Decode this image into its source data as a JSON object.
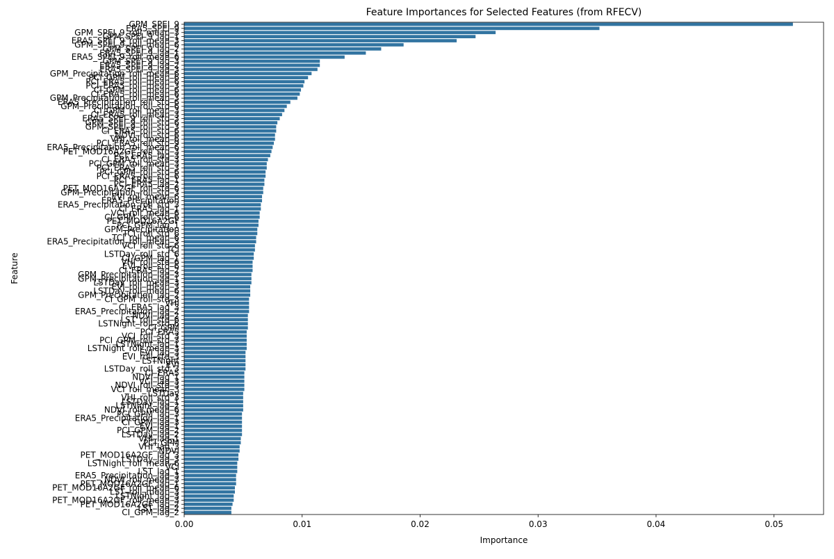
{
  "chart_data": {
    "type": "barh",
    "title": "Feature Importances for Selected Features (from RFECV)",
    "x_label": "Importance",
    "y_label": "Feature",
    "color": "#3274a1",
    "categories": [
      "GPM_SPEI_9",
      "ERA5_SPEI_9",
      "GPM_SPEI_9_roll_mean_3",
      "GPM_SPEI_9_lag_1",
      "ERA5_SPEI_9_roll_mean_3",
      "GPM_SPEI_9_roll_mean_6",
      "GPM_SPEI_9_lag_2",
      "ERA5_SPEI_9_lag_1",
      "ERA5_SPEI_9_roll_mean_6",
      "GPM_SPEI_9_lag_3",
      "ERA5_SPEI_9_lag_2",
      "ERA5_SPEI_9_lag_3",
      "GPM_Precipitation_roll_mean_6",
      "PCI_GPM_roll_mean_6",
      "PCI_ERA5_roll_mean_6",
      "PCI_ERA5_roll_mean_3",
      "CI_GPM_roll_mean_6",
      "CI_ERA5_roll_mean_6",
      "GPM_Precipitation_roll_mean_3",
      "ERA5_Precipitation_roll_std_6",
      "GPM_Precipitation_roll_std_6",
      "CI_GPM_roll_mean_3",
      "CI_ERA5_roll_mean_3",
      "ERA5_SPEI_9_roll_std_3",
      "GPM_SPEI_9_roll_std_6",
      "GPM_SPEI_9_roll_std_3",
      "CI_ERA5_roll_std_6",
      "NDVI_roll_std_6",
      "VHI_roll_mean_6",
      "PCI_ERA5_roll_std_9",
      "ERA5_Precipitation_roll_mean_6",
      "PET_MOD16A2GF_roll_std_3",
      "PCI_ERA5_lag_3",
      "CI_ERA5_roll_std_3",
      "PCI_GPM_roll_mean_3",
      "PCI_ERA5_roll_std_3",
      "PCI_GPM_roll_std_6",
      "PCI_ERA5_roll_std_6",
      "PCI_ERA5_lag_1",
      "PCI_ERA5_lag_2",
      "PET_MOD16A2GF_roll_std_6",
      "GPM_Precipitation_roll_std_3",
      "EVI_roll_mean_6",
      "ERA5_Precipitation",
      "ERA5_Precipitation_roll_std_3",
      "CI_ERA5_lag_1",
      "VCI_roll_mean_6",
      "CI_GPM_roll_std_6",
      "PET_MOD16A2GF",
      "PCI_GPM_lag_1",
      "GPM_Precipitation",
      "TCI_roll_std_6",
      "TCI_roll_mean_6",
      "ERA5_Precipitation_roll_mean_3",
      "VCI_roll_std_6",
      "TCI",
      "LSTDay_roll_std_6",
      "CI_GPM_lag_1",
      "VHI_roll_std_6",
      "EVI_roll_std_6",
      "CI_ERA5_lag_2",
      "GPM_Precipitation_lag_3",
      "GPM_Precipitation_lag_1",
      "LSTDay_roll_mean_3",
      "EVI_roll_mean_3",
      "LSTDay_roll_mean_6",
      "GPM_Precipitation_lag_2",
      "CI_GPM_roll_std_3",
      "VHI",
      "CI_ERA5_lag_3",
      "ERA5_Precipitation_lag_2",
      "NDVI_lag_2",
      "LST_roll_std_6",
      "LSTNight_roll_std_6",
      "CI_GPM",
      "PCI_ERA5",
      "VCI_roll_std_3",
      "PCI_GPM_roll_std_3",
      "LSTNight_lag_1",
      "LSTNight_roll_mean_3",
      "EVI_lag_3",
      "EVI_roll_std_3",
      "LSTNight",
      "EVI",
      "LSTDay_roll_std_3",
      "CI_ERA5",
      "NDVI_lag_1",
      "VCI_lag_3",
      "NDVI_roll_std_3",
      "VCI_roll_mean_3",
      "LSTDay",
      "VHI_roll_std_3",
      "LSTDay_lag_1",
      "LSTNight_lag_2",
      "NDVI_roll_mean_6",
      "PCI_GPM_lag_3",
      "ERA5_Precipitation_lag_1",
      "CI_GPM_lag_3",
      "EVI_lag_1",
      "PCI_GPM_lag_2",
      "LSTDay_lag_2",
      "VHI_lag_1",
      "PCI_GPM",
      "VHI_lag_3",
      "NDVI",
      "PET_MOD16A2GF_lag_3",
      "LSTDay_lag_3",
      "LSTNight_roll_mean_6",
      "VCI",
      "LST_lag_1",
      "ERA5_Precipitation_lag_3",
      "NDVI_roll_mean_3",
      "PET_MOD16A2GF_lag_1",
      "PET_MOD16A2GF_roll_mean_6",
      "LST_roll_mean_3",
      "LSTNight_lag_3",
      "PET_MOD16A2GF_roll_mean_3",
      "PET_MOD16A2GF_lag_2",
      "LST_lag_2",
      "CI_GPM_lag_2"
    ],
    "values": [
      0.0516,
      0.0352,
      0.0264,
      0.0247,
      0.0231,
      0.0186,
      0.0167,
      0.0154,
      0.0136,
      0.0115,
      0.0115,
      0.0113,
      0.0108,
      0.0105,
      0.0102,
      0.0101,
      0.0099,
      0.0098,
      0.0096,
      0.009,
      0.0087,
      0.0085,
      0.0083,
      0.0081,
      0.0079,
      0.0078,
      0.0078,
      0.0077,
      0.0077,
      0.0076,
      0.0075,
      0.0074,
      0.0073,
      0.0071,
      0.007,
      0.007,
      0.0069,
      0.0069,
      0.0068,
      0.0068,
      0.0067,
      0.0067,
      0.0066,
      0.0066,
      0.0065,
      0.0065,
      0.0064,
      0.0064,
      0.0063,
      0.0063,
      0.0062,
      0.0062,
      0.0061,
      0.0061,
      0.006,
      0.006,
      0.0059,
      0.0059,
      0.0058,
      0.0058,
      0.0058,
      0.0057,
      0.0057,
      0.0057,
      0.0056,
      0.0056,
      0.0056,
      0.0055,
      0.0055,
      0.0055,
      0.0055,
      0.0054,
      0.0054,
      0.0054,
      0.0054,
      0.0053,
      0.0053,
      0.0053,
      0.0053,
      0.0053,
      0.0052,
      0.0052,
      0.0052,
      0.0052,
      0.0052,
      0.0051,
      0.0051,
      0.0051,
      0.0051,
      0.0051,
      0.005,
      0.005,
      0.005,
      0.005,
      0.005,
      0.0049,
      0.0049,
      0.0049,
      0.0049,
      0.0049,
      0.0049,
      0.0048,
      0.0048,
      0.0047,
      0.0047,
      0.0046,
      0.0046,
      0.0045,
      0.0045,
      0.0045,
      0.0044,
      0.0044,
      0.0044,
      0.0043,
      0.0043,
      0.0042,
      0.0042,
      0.0041,
      0.004,
      0.004
    ],
    "xlim": [
      0,
      0.0542
    ],
    "xticks": [
      {
        "value": 0,
        "label": "0.00"
      },
      {
        "value": 0.01,
        "label": "0.01"
      },
      {
        "value": 0.02,
        "label": "0.02"
      },
      {
        "value": 0.03,
        "label": "0.03"
      },
      {
        "value": 0.04,
        "label": "0.04"
      },
      {
        "value": 0.05,
        "label": "0.05"
      }
    ]
  }
}
